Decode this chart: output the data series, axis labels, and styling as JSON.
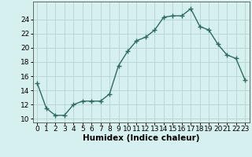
{
  "x": [
    0,
    1,
    2,
    3,
    4,
    5,
    6,
    7,
    8,
    9,
    10,
    11,
    12,
    13,
    14,
    15,
    16,
    17,
    18,
    19,
    20,
    21,
    22,
    23
  ],
  "y": [
    15,
    11.5,
    10.5,
    10.5,
    12,
    12.5,
    12.5,
    12.5,
    13.5,
    17.5,
    19.5,
    21,
    21.5,
    22.5,
    24.3,
    24.5,
    24.5,
    25.5,
    23,
    22.5,
    20.5,
    19,
    18.5,
    15.5
  ],
  "line_color": "#2e6b5e",
  "marker": "+",
  "marker_size": 4,
  "bg_color": "#d6f0ef",
  "grid_color": "#b8d8d6",
  "xlabel": "Humidex (Indice chaleur)",
  "xlim": [
    -0.5,
    23.5
  ],
  "ylim": [
    9.5,
    26.5
  ],
  "yticks": [
    10,
    12,
    14,
    16,
    18,
    20,
    22,
    24
  ],
  "xticks": [
    0,
    1,
    2,
    3,
    4,
    5,
    6,
    7,
    8,
    9,
    10,
    11,
    12,
    13,
    14,
    15,
    16,
    17,
    18,
    19,
    20,
    21,
    22,
    23
  ],
  "xlabel_fontsize": 7.5,
  "tick_fontsize": 6.5,
  "linewidth": 1.0,
  "markeredgewidth": 1.0
}
